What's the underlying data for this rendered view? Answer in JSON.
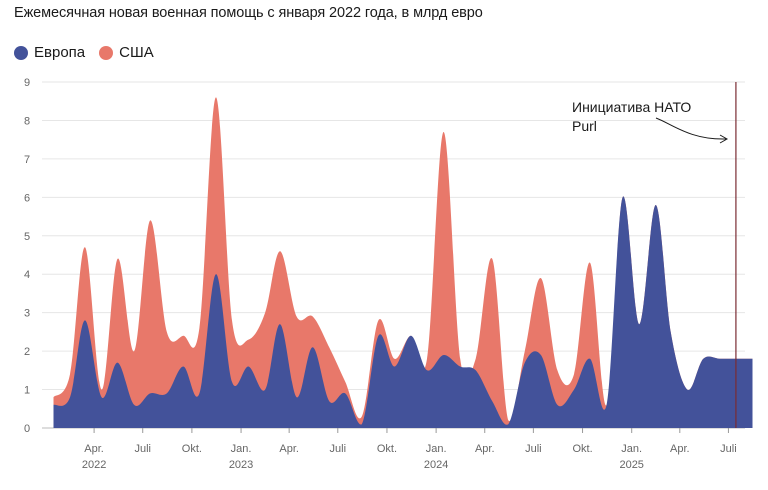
{
  "title": "Ежемесячная новая военная помощь с января 2022 года, в млрд евро",
  "legend": [
    {
      "label": "Европа",
      "color": "#43529a"
    },
    {
      "label": "США",
      "color": "#e8786a"
    }
  ],
  "annotation": {
    "line1": "Инициатива НАТО",
    "line2": "Purl",
    "x": "2025-07-15"
  },
  "chart_data": {
    "type": "area",
    "stacked": true,
    "ylim": [
      0,
      9
    ],
    "yticks": [
      0,
      1,
      2,
      3,
      4,
      5,
      6,
      7,
      8,
      9
    ],
    "grid": true,
    "legend_position": "top-left",
    "xlabels": [
      {
        "date": "2022-04-01",
        "label": "Apr.",
        "year": "2022"
      },
      {
        "date": "2022-07-01",
        "label": "Juli",
        "year": ""
      },
      {
        "date": "2022-10-01",
        "label": "Okt.",
        "year": ""
      },
      {
        "date": "2023-01-01",
        "label": "Jan.",
        "year": "2023"
      },
      {
        "date": "2023-04-01",
        "label": "Apr.",
        "year": ""
      },
      {
        "date": "2023-07-01",
        "label": "Juli",
        "year": ""
      },
      {
        "date": "2023-10-01",
        "label": "Okt.",
        "year": ""
      },
      {
        "date": "2024-01-01",
        "label": "Jan.",
        "year": "2024"
      },
      {
        "date": "2024-04-01",
        "label": "Apr.",
        "year": ""
      },
      {
        "date": "2024-07-01",
        "label": "Juli",
        "year": ""
      },
      {
        "date": "2024-10-01",
        "label": "Okt.",
        "year": ""
      },
      {
        "date": "2025-01-01",
        "label": "Jan.",
        "year": "2025"
      },
      {
        "date": "2025-04-01",
        "label": "Apr.",
        "year": ""
      },
      {
        "date": "2025-07-01",
        "label": "Juli",
        "year": ""
      }
    ],
    "dates": [
      "2022-01",
      "2022-02",
      "2022-03",
      "2022-04",
      "2022-05",
      "2022-06",
      "2022-07",
      "2022-08",
      "2022-09",
      "2022-10",
      "2022-11",
      "2022-12",
      "2023-01",
      "2023-02",
      "2023-03",
      "2023-04",
      "2023-05",
      "2023-06",
      "2023-07",
      "2023-08",
      "2023-09",
      "2023-10",
      "2023-11",
      "2023-12",
      "2024-01",
      "2024-02",
      "2024-03",
      "2024-04",
      "2024-05",
      "2024-06",
      "2024-07",
      "2024-08",
      "2024-09",
      "2024-10",
      "2024-11",
      "2024-12",
      "2025-01",
      "2025-02",
      "2025-03",
      "2025-04",
      "2025-05",
      "2025-06",
      "2025-07",
      "2025-08"
    ],
    "series": [
      {
        "name": "Европа",
        "color": "#43529a",
        "values": [
          0.6,
          0.8,
          2.8,
          0.8,
          1.7,
          0.6,
          0.9,
          0.9,
          1.6,
          0.9,
          4.0,
          1.2,
          1.6,
          1.0,
          2.7,
          0.8,
          2.1,
          0.7,
          0.9,
          0.1,
          2.4,
          1.6,
          2.4,
          1.5,
          1.9,
          1.6,
          1.5,
          0.7,
          0.1,
          1.7,
          1.9,
          0.6,
          1.0,
          1.8,
          0.6,
          6.0,
          2.7,
          5.8,
          2.5,
          1.0,
          1.8,
          1.8,
          1.8,
          1.8
        ]
      },
      {
        "name": "США",
        "color": "#e8786a",
        "values": [
          0.2,
          0.6,
          1.9,
          0.2,
          2.7,
          1.4,
          4.5,
          1.6,
          0.8,
          1.7,
          4.6,
          1.6,
          0.7,
          2.0,
          1.9,
          2.1,
          0.8,
          1.4,
          0.3,
          0.2,
          0.4,
          0.2,
          0.0,
          0.3,
          5.8,
          0.2,
          0.3,
          3.7,
          0.1,
          0.3,
          2.0,
          0.9,
          0.4,
          2.5,
          0.0,
          0.0,
          0.0,
          0.0,
          0.0,
          0.0,
          0.0,
          0.0,
          0.0,
          0.0
        ]
      }
    ]
  }
}
